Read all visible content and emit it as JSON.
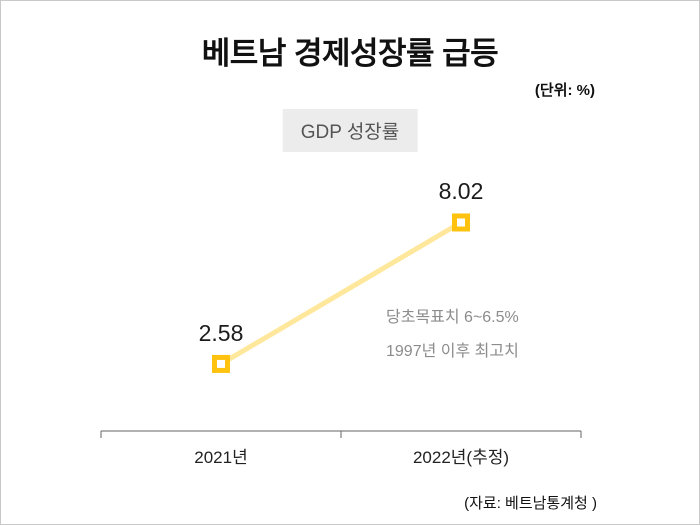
{
  "title": "베트남 경제성장률 급등",
  "unit_label": "(단위: %)",
  "legend_label": "GDP 성장률",
  "source": "(자료: 베트남통계청 )",
  "colors": {
    "line": "#ffe79c",
    "marker": "#ffc20e",
    "annotation": "#8c8c8c"
  },
  "chart_data": {
    "type": "line",
    "title": "베트남 경제성장률 급등",
    "series_label": "GDP 성장률",
    "categories": [
      "2021년",
      "2022년(추정)"
    ],
    "values": [
      2.58,
      8.02
    ],
    "unit": "%",
    "ylim": [
      0,
      10
    ],
    "grid": false,
    "legend_position": "top-center",
    "annotations": [
      "당초목표치 6~6.5%",
      "1997년 이후 최고치"
    ],
    "source_note": "(자료: 베트남통계청 )"
  }
}
